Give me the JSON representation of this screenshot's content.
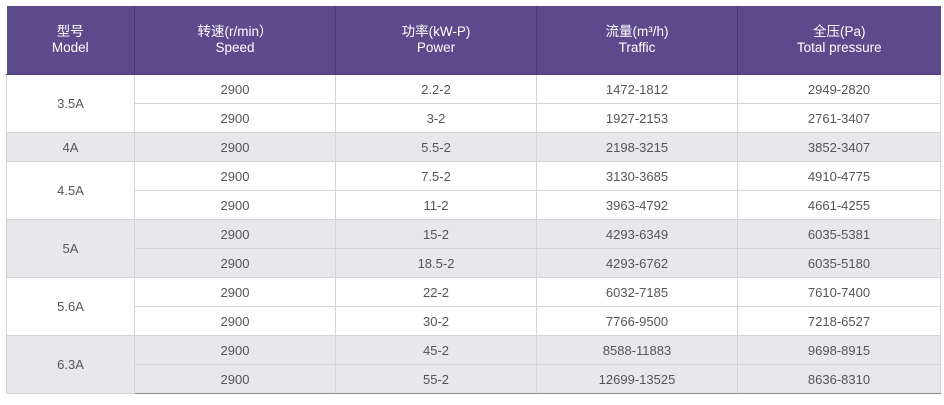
{
  "header": {
    "model": {
      "cn": "型号",
      "en": "Model"
    },
    "speed": {
      "cn": "转速(r/min）",
      "en": "Speed"
    },
    "power": {
      "cn": "功率(kW-P)",
      "en": "Power"
    },
    "traffic": {
      "cn": "流量(m³/h)",
      "en": "Traffic"
    },
    "total": {
      "cn": "全压(Pa)",
      "en": "Total pressure"
    }
  },
  "groups": [
    {
      "model": "3.5A",
      "shade": false,
      "rows": [
        {
          "speed": "2900",
          "power": "2.2-2",
          "traffic": "1472-1812",
          "total": "2949-2820"
        },
        {
          "speed": "2900",
          "power": "3-2",
          "traffic": "1927-2153",
          "total": "2761-3407"
        }
      ]
    },
    {
      "model": "4A",
      "shade": true,
      "rows": [
        {
          "speed": "2900",
          "power": "5.5-2",
          "traffic": "2198-3215",
          "total": "3852-3407"
        }
      ]
    },
    {
      "model": "4.5A",
      "shade": false,
      "rows": [
        {
          "speed": "2900",
          "power": "7.5-2",
          "traffic": "3130-3685",
          "total": "4910-4775"
        },
        {
          "speed": "2900",
          "power": "11-2",
          "traffic": "3963-4792",
          "total": "4661-4255"
        }
      ]
    },
    {
      "model": "5A",
      "shade": true,
      "rows": [
        {
          "speed": "2900",
          "power": "15-2",
          "traffic": "4293-6349",
          "total": "6035-5381"
        },
        {
          "speed": "2900",
          "power": "18.5-2",
          "traffic": "4293-6762",
          "total": "6035-5180"
        }
      ]
    },
    {
      "model": "5.6A",
      "shade": false,
      "rows": [
        {
          "speed": "2900",
          "power": "22-2",
          "traffic": "6032-7185",
          "total": "7610-7400"
        },
        {
          "speed": "2900",
          "power": "30-2",
          "traffic": "7766-9500",
          "total": "7218-6527"
        }
      ]
    },
    {
      "model": "6.3A",
      "shade": true,
      "rows": [
        {
          "speed": "2900",
          "power": "45-2",
          "traffic": "8588-11883",
          "total": "9698-8915"
        },
        {
          "speed": "2900",
          "power": "55-2",
          "traffic": "12699-13525",
          "total": "8636-8310"
        }
      ]
    }
  ]
}
